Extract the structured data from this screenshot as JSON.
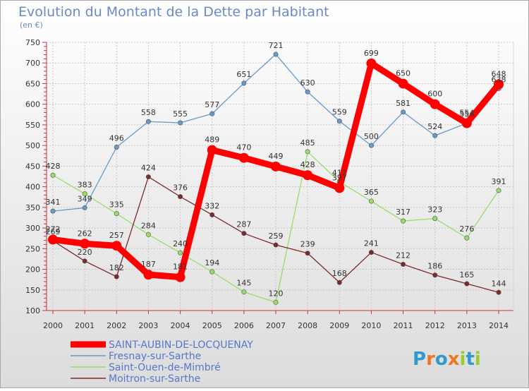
{
  "chart_data": {
    "type": "line",
    "title": "Evolution du Montant de la Dette par Habitant",
    "subtitle": "(en €)",
    "xlabel": "",
    "ylabel": "",
    "x": [
      "2000",
      "2001",
      "2002",
      "2003",
      "2004",
      "2005",
      "2006",
      "2007",
      "2008",
      "2009",
      "2010",
      "2011",
      "2012",
      "2013",
      "2014"
    ],
    "ylim": [
      100,
      750
    ],
    "yticks": [
      "100",
      "150",
      "200",
      "250",
      "300",
      "350",
      "400",
      "450",
      "500",
      "550",
      "600",
      "650",
      "700",
      "750"
    ],
    "grid": true,
    "legend_position": "bottom-left",
    "series": [
      {
        "name": "SAINT-AUBIN-DE-LOCQUENAY",
        "color": "#ff0000",
        "values": [
          272,
          262,
          257,
          187,
          181,
          489,
          470,
          449,
          428,
          397,
          699,
          650,
          600,
          554,
          648
        ],
        "labels": [
          "272",
          "262",
          "257",
          "187",
          "181",
          "489",
          "470",
          "449",
          "428",
          "397",
          "699",
          "650",
          "600",
          "554",
          "648"
        ]
      },
      {
        "name": "Fresnay-sur-Sarthe",
        "color": "#6699cc",
        "values": [
          341,
          349,
          496,
          558,
          555,
          577,
          651,
          721,
          630,
          559,
          500,
          581,
          524,
          554,
          638
        ],
        "labels": [
          "341",
          "349",
          "496",
          "558",
          "555",
          "577",
          "651",
          "721",
          "630",
          "559",
          "500",
          "581",
          "524",
          "554",
          "638"
        ]
      },
      {
        "name": "Saint-Ouen-de-Mimbré",
        "color": "#99dd66",
        "values": [
          428,
          383,
          335,
          284,
          240,
          194,
          145,
          120,
          485,
          412,
          365,
          317,
          323,
          276,
          391
        ],
        "labels": [
          "428",
          "383",
          "335",
          "284",
          "240",
          "194",
          "145",
          "120",
          "485",
          "412",
          "365",
          "317",
          "323",
          "276",
          "391"
        ]
      },
      {
        "name": "Moitron-sur-Sarthe",
        "color": "#7a2a2a",
        "values": [
          269,
          220,
          182,
          424,
          376,
          332,
          287,
          259,
          239,
          168,
          241,
          212,
          186,
          165,
          144
        ],
        "labels": [
          "269",
          "220",
          "182",
          "424",
          "376",
          "332",
          "287",
          "259",
          "239",
          "168",
          "241",
          "212",
          "186",
          "165",
          "144"
        ]
      }
    ],
    "logo": {
      "text": "Proxiti",
      "colors": [
        "#3399cc",
        "#ee7722",
        "#99cc33"
      ]
    }
  }
}
